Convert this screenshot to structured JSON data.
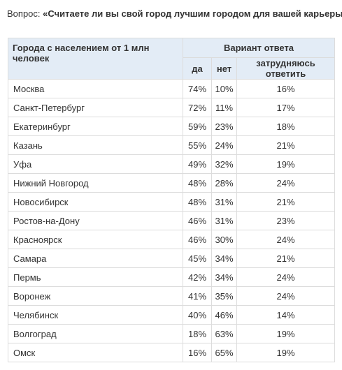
{
  "question": {
    "prefix": "Вопрос:",
    "text": "«Считаете ли вы свой город лучшим городом для вашей карьеры?»"
  },
  "table": {
    "city_header": "Города с населением от 1 млн человек",
    "variant_header": "Вариант ответа",
    "columns": [
      "да",
      "нет",
      "затрудняюсь ответить"
    ],
    "rows": [
      {
        "city": "Москва",
        "yes": "74%",
        "no": "10%",
        "hard": "16%"
      },
      {
        "city": "Санкт-Петербург",
        "yes": "72%",
        "no": "11%",
        "hard": "17%"
      },
      {
        "city": "Екатеринбург",
        "yes": "59%",
        "no": "23%",
        "hard": "18%"
      },
      {
        "city": "Казань",
        "yes": "55%",
        "no": "24%",
        "hard": "21%"
      },
      {
        "city": "Уфа",
        "yes": "49%",
        "no": "32%",
        "hard": "19%"
      },
      {
        "city": "Нижний Новгород",
        "yes": "48%",
        "no": "28%",
        "hard": "24%"
      },
      {
        "city": "Новосибирск",
        "yes": "48%",
        "no": "31%",
        "hard": "21%"
      },
      {
        "city": "Ростов-на-Дону",
        "yes": "46%",
        "no": "31%",
        "hard": "23%"
      },
      {
        "city": "Красноярск",
        "yes": "46%",
        "no": "30%",
        "hard": "24%"
      },
      {
        "city": "Самара",
        "yes": "45%",
        "no": "34%",
        "hard": "21%"
      },
      {
        "city": "Пермь",
        "yes": "42%",
        "no": "34%",
        "hard": "24%"
      },
      {
        "city": "Воронеж",
        "yes": "41%",
        "no": "35%",
        "hard": "24%"
      },
      {
        "city": "Челябинск",
        "yes": "40%",
        "no": "46%",
        "hard": "14%"
      },
      {
        "city": "Волгоград",
        "yes": "18%",
        "no": "63%",
        "hard": "19%"
      },
      {
        "city": "Омск",
        "yes": "16%",
        "no": "65%",
        "hard": "19%"
      }
    ]
  },
  "colors": {
    "header_bg": "#e3ecf6",
    "border": "#dcdcdc",
    "text": "#333333"
  }
}
